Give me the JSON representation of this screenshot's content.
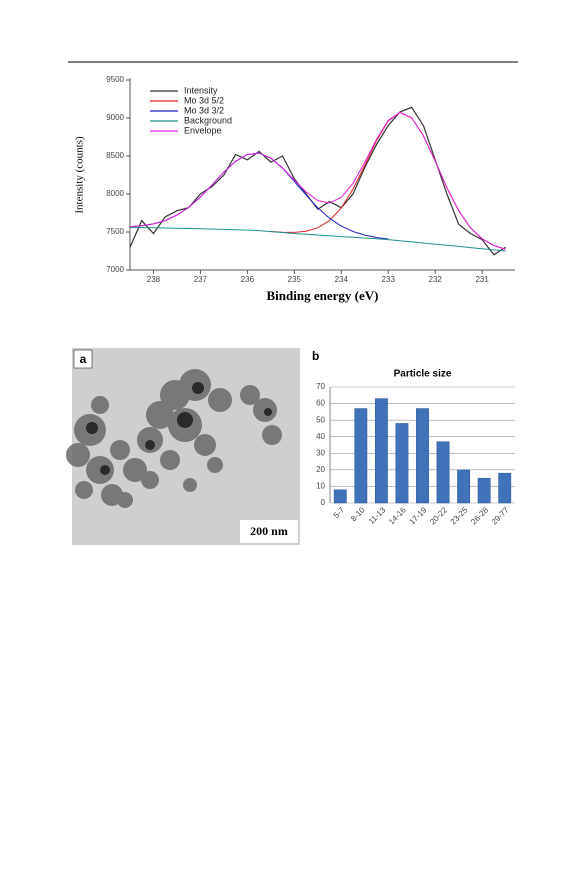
{
  "chart_data": [
    {
      "type": "line",
      "x_label": "Binding energy (eV)",
      "y_label": "Intensity (counts)",
      "x": [
        238.5,
        238.25,
        238.0,
        237.75,
        237.5,
        237.25,
        237.0,
        236.75,
        236.5,
        236.25,
        236.0,
        235.75,
        235.5,
        235.25,
        235.0,
        234.75,
        234.5,
        234.25,
        234.0,
        233.75,
        233.5,
        233.25,
        233.0,
        232.75,
        232.5,
        232.25,
        232.0,
        231.75,
        231.5,
        231.25,
        231.0,
        230.75,
        230.5
      ],
      "series": [
        {
          "name": "Intensity",
          "color": "#333333",
          "values": [
            7300,
            7650,
            7480,
            7700,
            7780,
            7820,
            8000,
            8100,
            8250,
            8520,
            8450,
            8560,
            8420,
            8500,
            8200,
            8000,
            7800,
            7900,
            7820,
            8000,
            8350,
            8650,
            8900,
            9080,
            9140,
            8900,
            8450,
            8000,
            7600,
            7480,
            7400,
            7200,
            7300
          ]
        },
        {
          "name": "Mo 3d 5/2",
          "color": "#e02020",
          "values": [
            null,
            null,
            null,
            null,
            null,
            null,
            null,
            null,
            null,
            null,
            null,
            null,
            7507,
            7498,
            7495,
            7510,
            7555,
            7650,
            7816,
            8064,
            8377,
            8701,
            8960,
            9072,
            9001,
            8767,
            8433,
            8083,
            7780,
            7556,
            7410,
            7323,
            7273
          ]
        },
        {
          "name": "Mo 3d 3/2",
          "color": "#2323c8",
          "values": [
            7571,
            7583,
            7607,
            7650,
            7722,
            7824,
            7961,
            8122,
            8288,
            8430,
            8520,
            8538,
            8470,
            8339,
            8167,
            7987,
            7819,
            7681,
            7578,
            7507,
            7459,
            7428,
            7408,
            null,
            null,
            null,
            null,
            null,
            null,
            null,
            null,
            null,
            null
          ]
        },
        {
          "name": "Background",
          "color": "#1f8f8f",
          "values": [
            7560,
            7558,
            7556,
            7553,
            7550,
            7546,
            7542,
            7538,
            7534,
            7530,
            7525,
            7518,
            7505,
            7493,
            7480,
            7470,
            7460,
            7450,
            7440,
            7430,
            7420,
            7410,
            7400,
            7385,
            7370,
            7355,
            7340,
            7325,
            7310,
            7295,
            7280,
            7265,
            7250
          ]
        },
        {
          "name": "Envelope",
          "color": "#e020e0",
          "values": [
            7571,
            7583,
            7607,
            7650,
            7722,
            7824,
            7961,
            8122,
            8288,
            8430,
            8520,
            8538,
            8472,
            8344,
            8182,
            8027,
            7914,
            7881,
            7954,
            8141,
            8416,
            8719,
            8968,
            9072,
            9001,
            8767,
            8433,
            8083,
            7780,
            7556,
            7410,
            7323,
            7273
          ]
        }
      ],
      "xlim": [
        238.5,
        230.3
      ],
      "xticks": [
        238,
        237,
        236,
        235,
        234,
        233,
        232,
        231
      ],
      "ylim": [
        7000,
        9500
      ],
      "yticks": [
        7000,
        7500,
        8000,
        8500,
        9000,
        9500
      ],
      "legend": "upper left"
    },
    {
      "type": "bar",
      "title": "Particle size",
      "categories": [
        "5-7",
        "8-10",
        "11-13",
        "14-16",
        "17-19",
        "20-22",
        "23-25",
        "26-28",
        "29-77"
      ],
      "values": [
        8,
        57,
        63,
        48,
        57,
        37,
        20,
        15,
        18
      ],
      "color": "#3f72b8",
      "ylim": [
        0,
        70
      ],
      "yticks": [
        0,
        10,
        20,
        30,
        40,
        50,
        60,
        70
      ],
      "grid": true
    }
  ],
  "panels": {
    "a": "a",
    "b": "b",
    "scale_bar": "200 nm"
  }
}
